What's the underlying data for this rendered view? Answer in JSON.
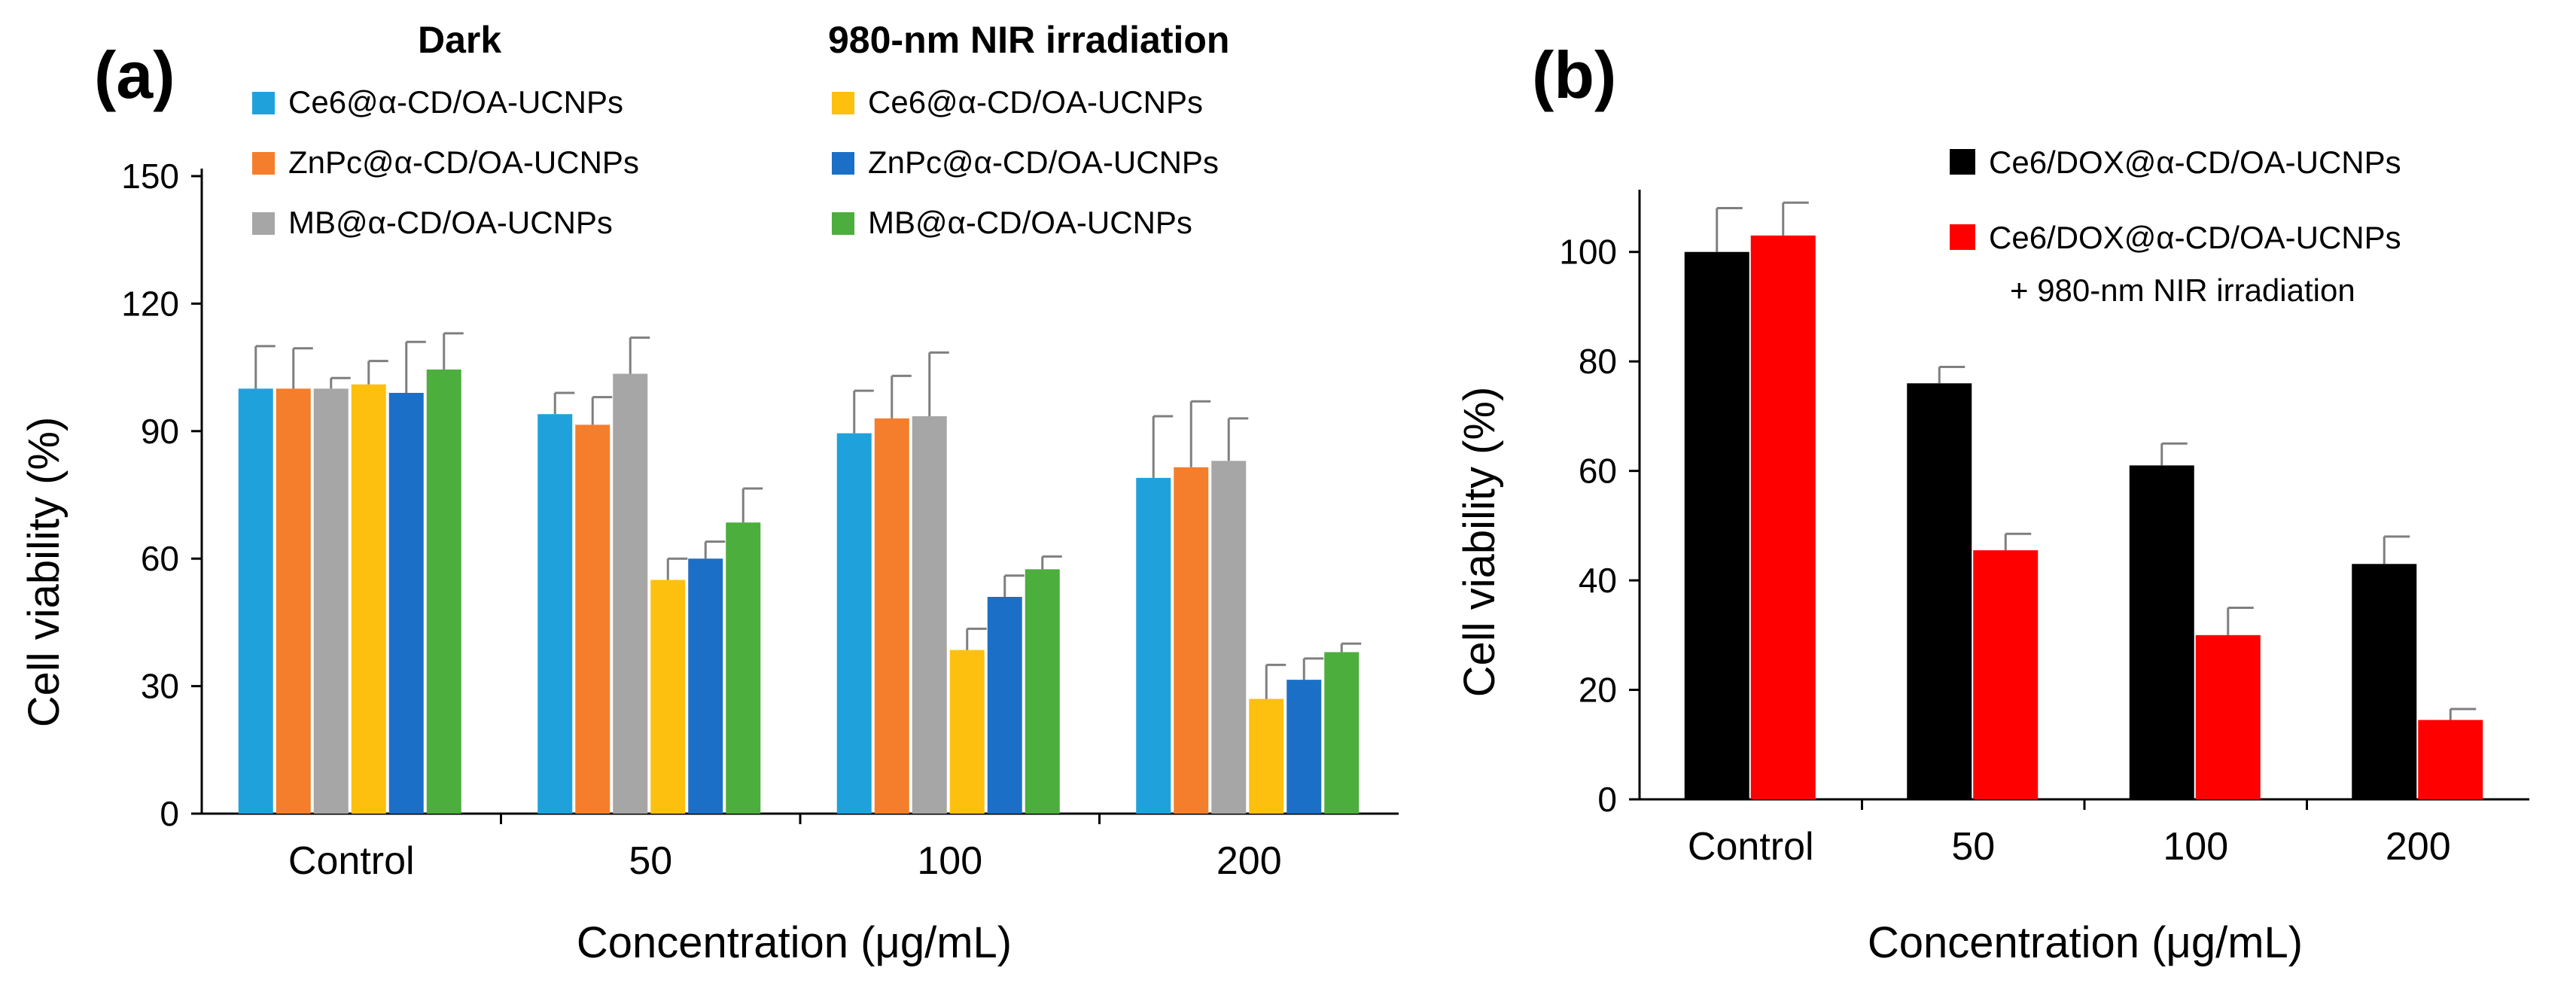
{
  "chart_data": [
    {
      "panel": "(a)",
      "type": "bar",
      "xlabel": "Concentration (μg/mL)",
      "ylabel": "Cell viability (%)",
      "ylim": [
        0,
        150
      ],
      "yticks": [
        0,
        30,
        60,
        90,
        120,
        150
      ],
      "categories": [
        "Control",
        "50",
        "100",
        "200"
      ],
      "legend_groups": [
        "Dark",
        "980-nm NIR irradiation"
      ],
      "series": [
        {
          "name": "Ce6@α-CD/OA-UCNPs",
          "group": "Dark",
          "color": "#1fa2dc",
          "values": [
            100,
            94,
            89.5,
            79
          ],
          "errors": [
            10,
            5,
            10,
            14.5
          ]
        },
        {
          "name": "ZnPc@α-CD/OA-UCNPs",
          "group": "Dark",
          "color": "#f47e2c",
          "values": [
            100,
            91.5,
            93,
            81.5
          ],
          "errors": [
            9.5,
            6.5,
            10,
            15.5
          ]
        },
        {
          "name": "MB@α-CD/OA-UCNPs",
          "group": "Dark",
          "color": "#a6a6a6",
          "values": [
            100,
            103.5,
            93.5,
            83
          ],
          "errors": [
            2.5,
            8.5,
            15,
            10
          ]
        },
        {
          "name": "Ce6@α-CD/OA-UCNPs",
          "group": "980-nm NIR irradiation",
          "color": "#fec00f",
          "values": [
            101,
            55,
            38.5,
            27
          ],
          "errors": [
            5.5,
            5,
            5,
            8
          ]
        },
        {
          "name": "ZnPc@α-CD/OA-UCNPs",
          "group": "980-nm NIR irradiation",
          "color": "#1c6fc6",
          "values": [
            99,
            60,
            51,
            31.5
          ],
          "errors": [
            12,
            4,
            5,
            5
          ]
        },
        {
          "name": "MB@α-CD/OA-UCNPs",
          "group": "980-nm NIR irradiation",
          "color": "#4cae3c",
          "values": [
            104.5,
            68.5,
            57.5,
            38
          ],
          "errors": [
            8.5,
            8,
            3,
            2
          ]
        }
      ]
    },
    {
      "panel": "(b)",
      "type": "bar",
      "xlabel": "Concentration (μg/mL)",
      "ylabel": "Cell viability (%)",
      "ylim": [
        0,
        110
      ],
      "yticks": [
        0,
        20,
        40,
        60,
        80,
        100
      ],
      "categories": [
        "Control",
        "50",
        "100",
        "200"
      ],
      "series": [
        {
          "name": "Ce6/DOX@α-CD/OA-UCNPs",
          "name_line2": "",
          "color": "#000000",
          "values": [
            100,
            76,
            61,
            43
          ],
          "errors": [
            8,
            3,
            4,
            5
          ]
        },
        {
          "name": "Ce6/DOX@α-CD/OA-UCNPs",
          "name_line2": "+ 980-nm NIR irradiation",
          "color": "#ff0000",
          "values": [
            103,
            45.5,
            30,
            14.5
          ],
          "errors": [
            6,
            3,
            5,
            2
          ]
        }
      ]
    }
  ]
}
